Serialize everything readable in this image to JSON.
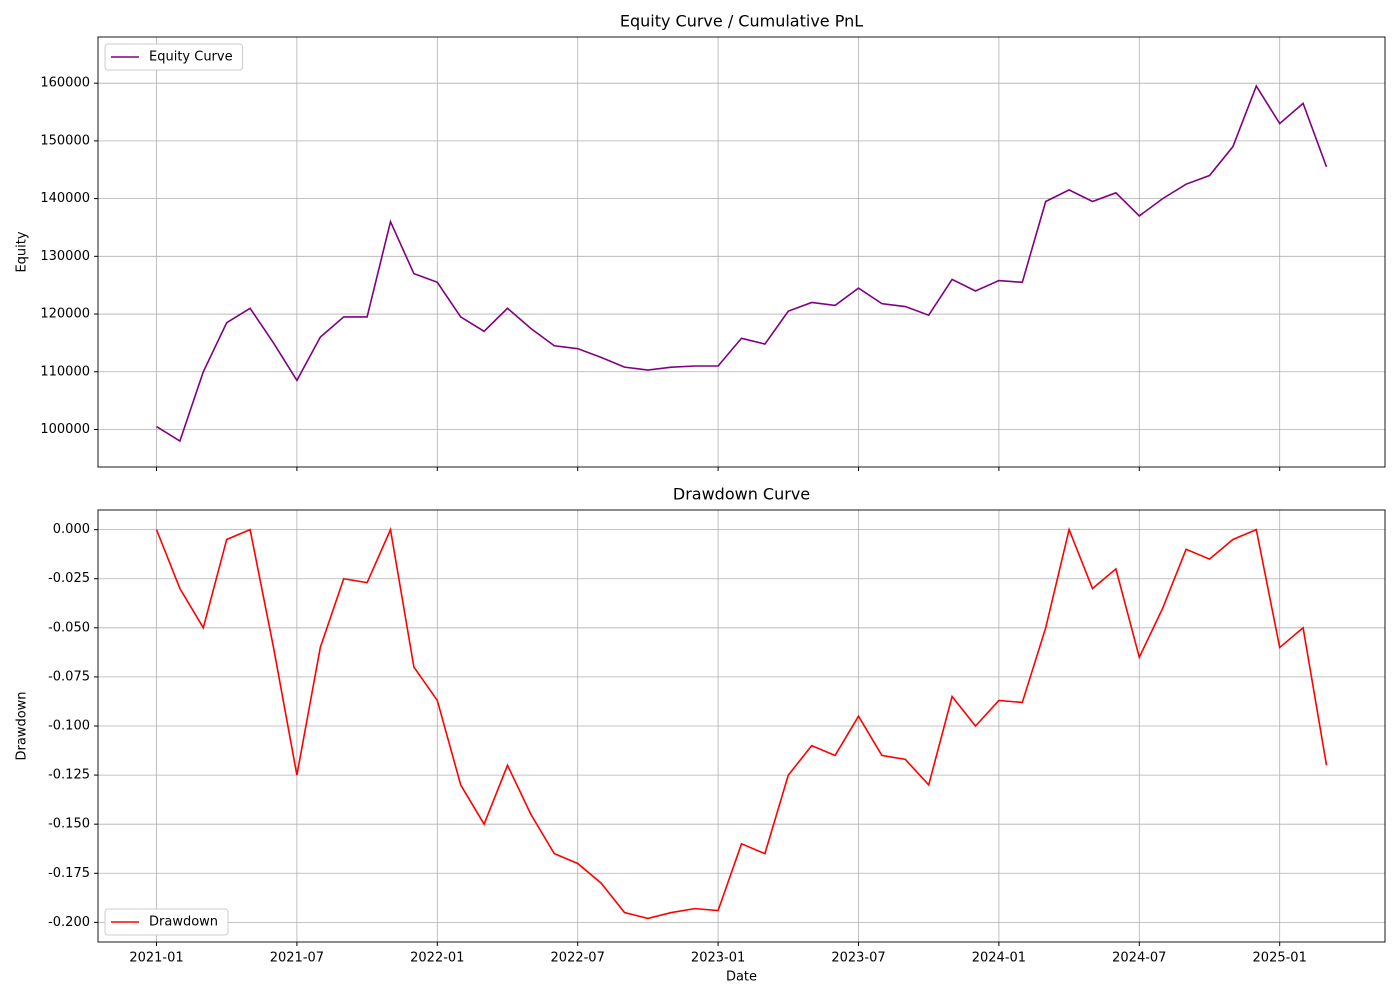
{
  "chart_data": [
    {
      "type": "line",
      "title": "Equity Curve / Cumulative PnL",
      "y_label": "Equity",
      "legend": "upper left",
      "grid": true,
      "x": [
        "2021-01",
        "2021-02",
        "2021-03",
        "2021-04",
        "2021-05",
        "2021-06",
        "2021-07",
        "2021-08",
        "2021-09",
        "2021-10",
        "2021-11",
        "2021-12",
        "2022-01",
        "2022-02",
        "2022-03",
        "2022-04",
        "2022-05",
        "2022-06",
        "2022-07",
        "2022-08",
        "2022-09",
        "2022-10",
        "2022-11",
        "2022-12",
        "2023-01",
        "2023-02",
        "2023-03",
        "2023-04",
        "2023-05",
        "2023-06",
        "2023-07",
        "2023-08",
        "2023-09",
        "2023-10",
        "2023-11",
        "2023-12",
        "2024-01",
        "2024-02",
        "2024-03",
        "2024-04",
        "2024-05",
        "2024-06",
        "2024-07",
        "2024-08",
        "2024-09",
        "2024-10",
        "2024-11",
        "2024-12",
        "2025-01",
        "2025-02",
        "2025-03"
      ],
      "series": [
        {
          "name": "Equity Curve",
          "color": "#800080",
          "values": [
            100500,
            98000,
            110000,
            118500,
            121000,
            115000,
            108500,
            116000,
            119500,
            119500,
            136000,
            127000,
            125500,
            119500,
            117000,
            121000,
            117500,
            114500,
            114000,
            112500,
            110800,
            110300,
            110800,
            111000,
            111000,
            115800,
            114800,
            120500,
            122000,
            121500,
            124500,
            121800,
            121300,
            119800,
            126000,
            124000,
            125800,
            125500,
            139500,
            141500,
            139500,
            141000,
            137000,
            140000,
            142500,
            144000,
            149000,
            159500,
            153000,
            156500,
            145500
          ]
        }
      ],
      "ylim": [
        93500,
        168000
      ],
      "yticks": [
        100000,
        110000,
        120000,
        130000,
        140000,
        150000,
        160000
      ]
    },
    {
      "type": "line",
      "title": "Drawdown Curve",
      "y_label": "Drawdown",
      "x_label": "Date",
      "legend": "lower left",
      "grid": true,
      "x": [
        "2021-01",
        "2021-02",
        "2021-03",
        "2021-04",
        "2021-05",
        "2021-06",
        "2021-07",
        "2021-08",
        "2021-09",
        "2021-10",
        "2021-11",
        "2021-12",
        "2022-01",
        "2022-02",
        "2022-03",
        "2022-04",
        "2022-05",
        "2022-06",
        "2022-07",
        "2022-08",
        "2022-09",
        "2022-10",
        "2022-11",
        "2022-12",
        "2023-01",
        "2023-02",
        "2023-03",
        "2023-04",
        "2023-05",
        "2023-06",
        "2023-07",
        "2023-08",
        "2023-09",
        "2023-10",
        "2023-11",
        "2023-12",
        "2024-01",
        "2024-02",
        "2024-03",
        "2024-04",
        "2024-05",
        "2024-06",
        "2024-07",
        "2024-08",
        "2024-09",
        "2024-10",
        "2024-11",
        "2024-12",
        "2025-01",
        "2025-02",
        "2025-03"
      ],
      "series": [
        {
          "name": "Drawdown",
          "color": "#ff0000",
          "values": [
            0,
            -0.03,
            -0.05,
            -0.005,
            0,
            -0.06,
            -0.125,
            -0.06,
            -0.025,
            -0.027,
            0,
            -0.07,
            -0.087,
            -0.13,
            -0.15,
            -0.12,
            -0.145,
            -0.165,
            -0.17,
            -0.18,
            -0.195,
            -0.198,
            -0.195,
            -0.193,
            -0.194,
            -0.16,
            -0.165,
            -0.125,
            -0.11,
            -0.115,
            -0.095,
            -0.115,
            -0.117,
            -0.13,
            -0.085,
            -0.1,
            -0.087,
            -0.088,
            -0.05,
            0,
            -0.03,
            -0.02,
            -0.065,
            -0.04,
            -0.01,
            -0.015,
            -0.005,
            0,
            -0.06,
            -0.05,
            -0.12
          ]
        }
      ],
      "ylim": [
        -0.21,
        0.01
      ],
      "yticks": [
        {
          "value": -0.2,
          "label": "-0.200"
        },
        {
          "value": -0.175,
          "label": "-0.175"
        },
        {
          "value": -0.15,
          "label": "-0.150"
        },
        {
          "value": -0.125,
          "label": "-0.125"
        },
        {
          "value": -0.1,
          "label": "-0.100"
        },
        {
          "value": -0.075,
          "label": "-0.075"
        },
        {
          "value": -0.05,
          "label": "-0.050"
        },
        {
          "value": -0.025,
          "label": "-0.025"
        },
        {
          "value": 0,
          "label": "0.000"
        }
      ],
      "xticks": [
        "2021-01",
        "2021-07",
        "2022-01",
        "2022-07",
        "2023-01",
        "2023-07",
        "2024-01",
        "2024-07",
        "2025-01"
      ]
    }
  ]
}
